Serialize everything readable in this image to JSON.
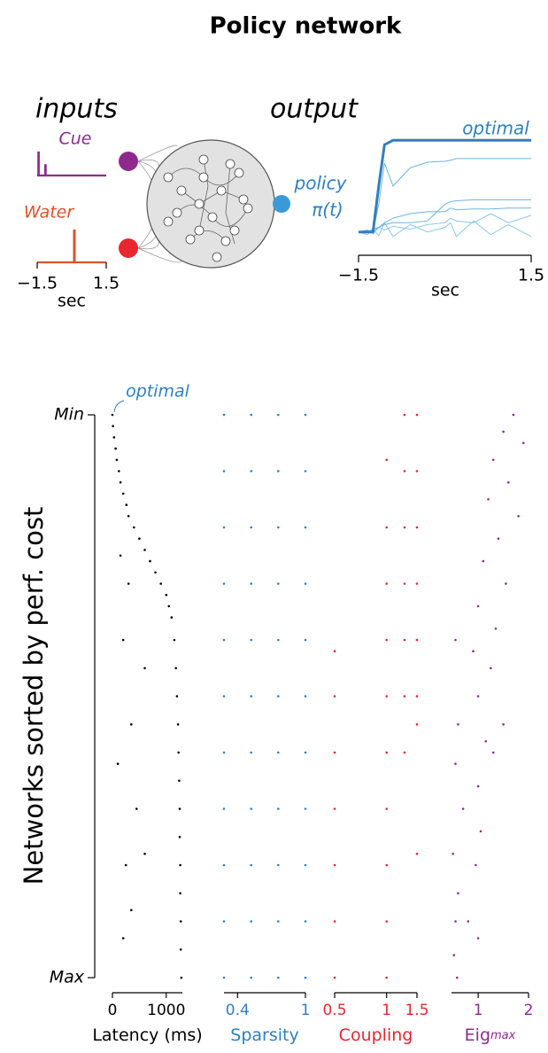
{
  "title": "Policy network",
  "diagram": {
    "inputs_label": "inputs",
    "output_label": "output",
    "policy_label": "policy",
    "policy_symbol": "π(t)"
  },
  "chart_data": [
    {
      "type": "steps",
      "xlim": [
        -1.5,
        1.5
      ],
      "ylim": [
        0,
        1
      ],
      "xticks": [
        {
          "value": -1.5,
          "label": "−1.5"
        },
        1.5
      ],
      "xlabel": "sec",
      "series": [
        {
          "name": "Cue",
          "color": "#8e2a8e",
          "x": [
            -1.5,
            -1.45,
            -1.45,
            -1.43,
            -1.43,
            -1.15,
            -1.15,
            -1.13,
            -1.13,
            1.5
          ],
          "values": [
            0,
            0,
            1,
            1,
            0,
            0,
            0.45,
            0.45,
            0,
            0
          ]
        },
        {
          "name": "Water",
          "color": "#d9542c",
          "x": [
            -1.5,
            0.1,
            0.1,
            0.13,
            0.13,
            1.5
          ],
          "values": [
            0,
            0,
            1,
            1,
            0,
            0
          ]
        }
      ]
    },
    {
      "type": "line",
      "xlim": [
        -1.5,
        1.5
      ],
      "ylim": [
        -0.1,
        1.05
      ],
      "xticks": [
        {
          "value": -1.5,
          "label": "−1.5"
        },
        1.5
      ],
      "xlabel": "sec",
      "x": [
        -1.5,
        -1.35,
        -1.25,
        -1.15,
        -1.05,
        -0.9,
        -0.6,
        -0.3,
        0,
        0.1,
        0.2,
        0.5,
        0.8,
        1.1,
        1.5
      ],
      "series": [
        {
          "name": "optimal",
          "color": "#2f7fc1",
          "width": 3,
          "values": [
            0,
            0,
            0,
            0.5,
            0.95,
            1,
            1,
            1,
            1,
            1,
            1,
            1,
            1,
            1,
            1
          ]
        },
        {
          "color": "#6db4e3",
          "width": 1,
          "values": [
            0,
            0,
            0,
            0.3,
            0.75,
            0.5,
            0.7,
            0.76,
            0.77,
            0.78,
            0.8,
            0.8,
            0.8,
            0.8,
            0.8
          ]
        },
        {
          "color": "#6db4e3",
          "width": 1,
          "values": [
            0,
            0.02,
            0,
            0.05,
            0.08,
            0.1,
            0.1,
            0.12,
            0.3,
            0.33,
            0.34,
            0.35,
            0.35,
            0.35,
            0.35
          ]
        },
        {
          "color": "#6db4e3",
          "width": 1,
          "values": [
            0,
            0,
            0.03,
            0.05,
            0.1,
            0.15,
            0.2,
            0.22,
            0.22,
            0.26,
            0.24,
            0.25,
            0.25,
            0.26,
            0.26
          ]
        },
        {
          "color": "#8cc8ec",
          "width": 1,
          "values": [
            0,
            0.02,
            -0.02,
            0.05,
            0.02,
            0.06,
            0.03,
            0.08,
            0.1,
            0.15,
            0.12,
            0.1,
            0.2,
            0.1,
            0.18
          ]
        },
        {
          "color": "#8cc8ec",
          "width": 1,
          "values": [
            0,
            -0.03,
            0.03,
            -0.04,
            0.1,
            -0.05,
            0.08,
            0,
            0.05,
            0.1,
            -0.05,
            0.12,
            -0.03,
            0.08,
            -0.05
          ]
        }
      ]
    },
    {
      "type": "scatter",
      "color": "#000000",
      "xlabel": "Latency (ms)",
      "annotation": "optimal",
      "ylabel": "Networks sorted by perf. cost",
      "ylim": [
        1,
        0
      ],
      "yticks": [
        {
          "value": 0,
          "label": "Min"
        },
        {
          "value": 1,
          "label": "Max"
        }
      ],
      "xlim": [
        0,
        1300
      ],
      "xticks": [
        0,
        1000
      ],
      "x": [
        0,
        10,
        30,
        60,
        80,
        120,
        150,
        200,
        260,
        300,
        400,
        500,
        600,
        700,
        800,
        900,
        1000,
        1050,
        1100,
        1150,
        1180,
        1200,
        1220,
        1230,
        1240,
        1250,
        1250,
        1260,
        1260,
        1270,
        1270,
        1280,
        150,
        300,
        200,
        600,
        350,
        100,
        450,
        600,
        250,
        350,
        200
      ],
      "values": [
        0,
        0.02,
        0.04,
        0.06,
        0.08,
        0.1,
        0.12,
        0.14,
        0.16,
        0.18,
        0.2,
        0.22,
        0.24,
        0.26,
        0.28,
        0.3,
        0.32,
        0.34,
        0.36,
        0.4,
        0.45,
        0.5,
        0.55,
        0.6,
        0.65,
        0.7,
        0.75,
        0.8,
        0.85,
        0.9,
        0.95,
        1,
        0.25,
        0.3,
        0.4,
        0.45,
        0.55,
        0.62,
        0.7,
        0.78,
        0.8,
        0.88,
        0.93
      ]
    },
    {
      "type": "scatter",
      "color": "#2f7fc1",
      "xlabel": "Sparsity",
      "ylim": [
        1,
        0
      ],
      "xlim": [
        0.28,
        1
      ],
      "xticks": [
        0.4,
        1
      ],
      "x": [
        0.28,
        0.28,
        0.28,
        0.28,
        0.28,
        0.28,
        0.28,
        0.28,
        0.28,
        0.28,
        0.28,
        0.52,
        0.52,
        0.52,
        0.52,
        0.52,
        0.52,
        0.52,
        0.52,
        0.52,
        0.52,
        0.52,
        0.76,
        0.76,
        0.76,
        0.76,
        0.76,
        0.76,
        0.76,
        0.76,
        0.76,
        0.76,
        0.76,
        1,
        1,
        1,
        1,
        1,
        1,
        1,
        1,
        1,
        1,
        1
      ],
      "values": [
        0,
        0.1,
        0.2,
        0.3,
        0.4,
        0.5,
        0.6,
        0.7,
        0.8,
        0.9,
        1,
        0,
        0.1,
        0.2,
        0.3,
        0.4,
        0.5,
        0.6,
        0.7,
        0.8,
        0.9,
        1,
        0,
        0.1,
        0.2,
        0.3,
        0.4,
        0.5,
        0.6,
        0.7,
        0.8,
        0.9,
        1,
        0,
        0.1,
        0.2,
        0.3,
        0.4,
        0.5,
        0.6,
        0.7,
        0.8,
        0.9,
        1
      ]
    },
    {
      "type": "scatter",
      "color": "#e8262f",
      "xlabel": "Coupling",
      "ylim": [
        1,
        0
      ],
      "xscale": "log",
      "xlim": [
        0.5,
        1.5
      ],
      "xticks": [
        0.5,
        1,
        1.5
      ],
      "x": [
        0.5,
        0.5,
        0.5,
        0.5,
        0.5,
        0.5,
        0.5,
        1,
        1,
        1,
        1,
        1,
        1,
        1,
        1,
        1,
        1,
        1.27,
        1.27,
        1.27,
        1.27,
        1.27,
        1.27,
        1.27,
        1.5,
        1.5,
        1.5,
        1.5,
        1.5,
        1.5,
        1.5,
        1.5
      ],
      "values": [
        0.42,
        0.5,
        0.6,
        0.7,
        0.8,
        0.9,
        1,
        0.08,
        0.2,
        0.3,
        0.4,
        0.5,
        0.6,
        0.7,
        0.8,
        0.9,
        1,
        0,
        0.1,
        0.2,
        0.3,
        0.4,
        0.5,
        0.6,
        0,
        0.1,
        0.2,
        0.3,
        0.4,
        0.5,
        0.55,
        0.78
      ]
    },
    {
      "type": "scatter",
      "color": "#8e2a8e",
      "xlabel": "Eig",
      "xlabel_sub": "max",
      "ylim": [
        1,
        0
      ],
      "xlim": [
        0.47,
        2
      ],
      "xticks": [
        1,
        2
      ],
      "x": [
        1.7,
        1.5,
        1.9,
        1.3,
        1.6,
        1.2,
        1.8,
        1.4,
        1.1,
        1.55,
        1.0,
        1.35,
        0.9,
        1.25,
        0.55,
        1.0,
        0.6,
        1.15,
        0.55,
        1.0,
        0.7,
        1.05,
        0.5,
        0.95,
        0.6,
        0.55,
        1.0,
        0.52,
        0.58,
        1.3,
        1.5,
        0.8
      ],
      "values": [
        0,
        0.03,
        0.05,
        0.08,
        0.12,
        0.15,
        0.18,
        0.22,
        0.26,
        0.3,
        0.34,
        0.38,
        0.42,
        0.45,
        0.4,
        0.5,
        0.55,
        0.58,
        0.62,
        0.66,
        0.7,
        0.74,
        0.78,
        0.8,
        0.85,
        0.9,
        0.93,
        0.96,
        1,
        0.6,
        0.55,
        0.9
      ]
    }
  ]
}
